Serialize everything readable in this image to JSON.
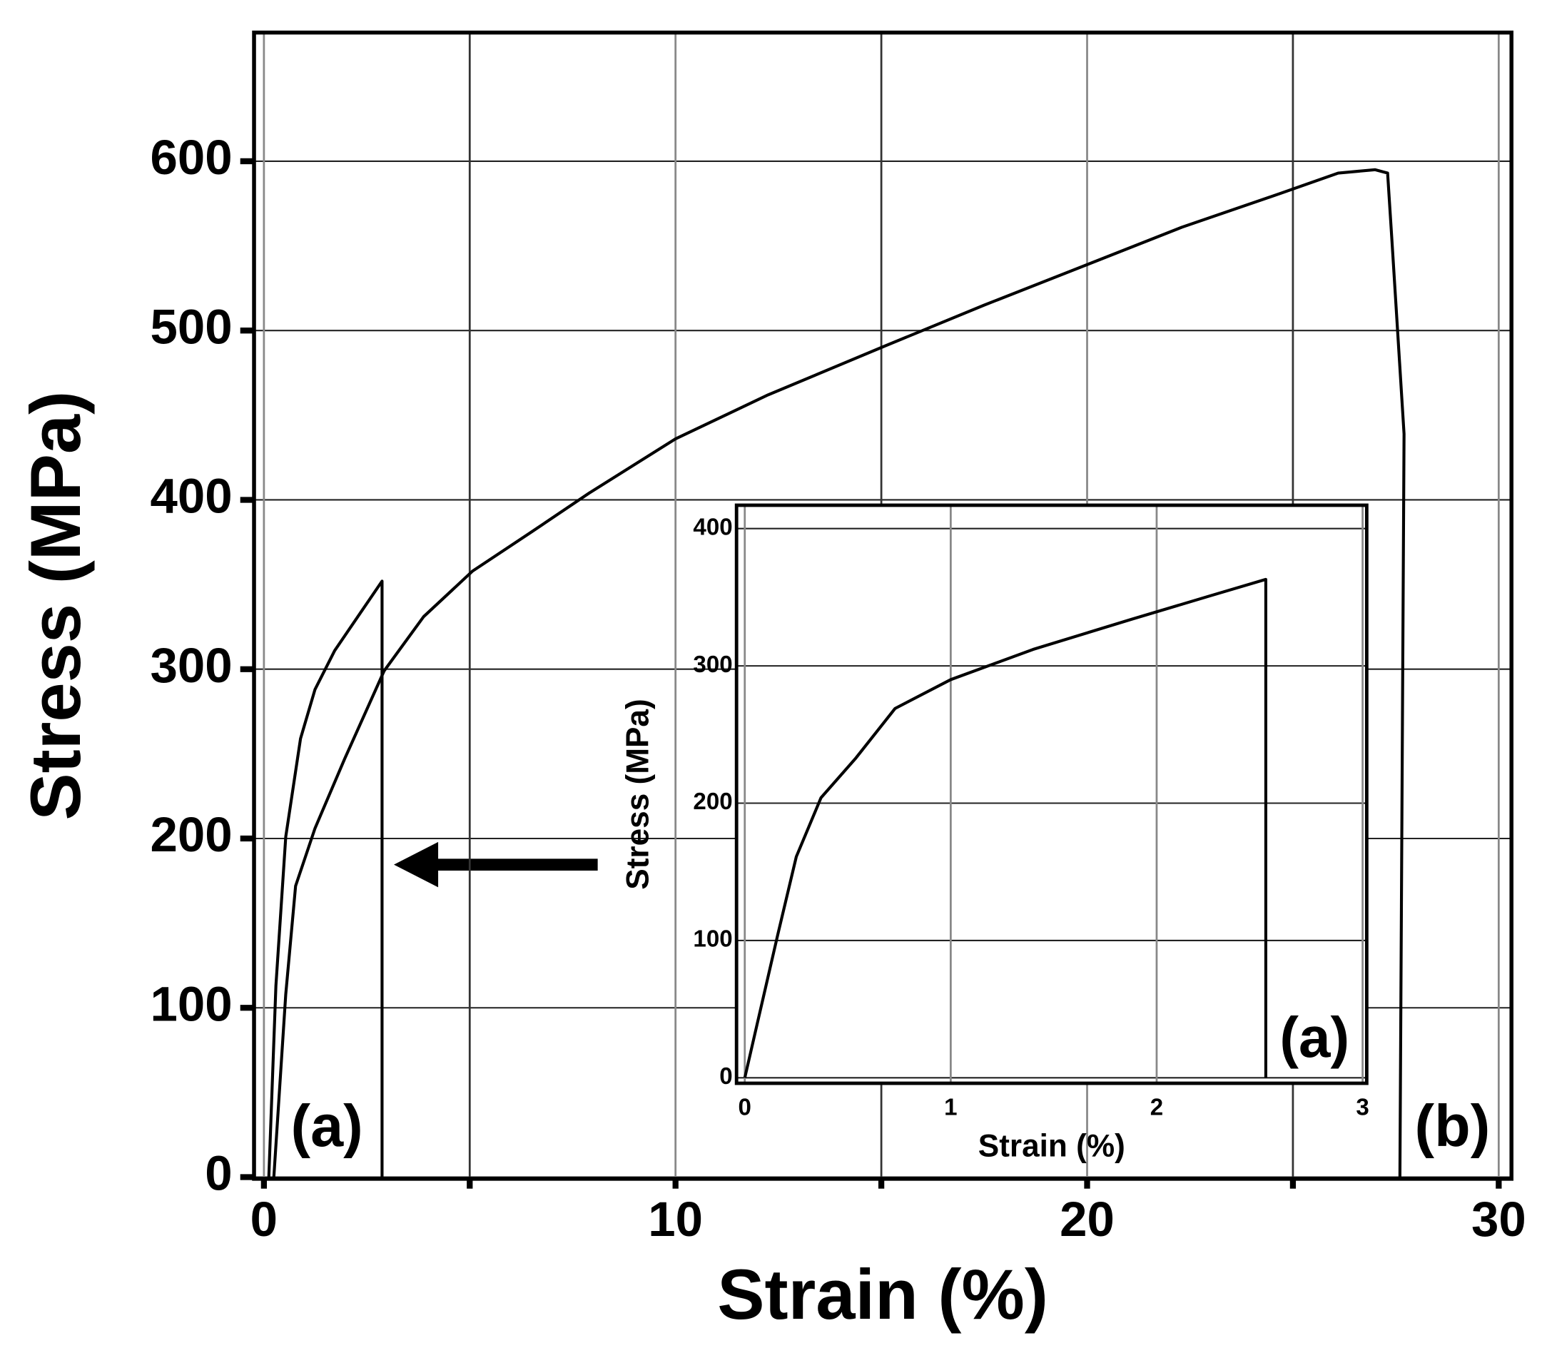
{
  "chart_data": [
    {
      "type": "line",
      "x_label": "Strain (%)",
      "y_label": "Stress (MPa)",
      "xlim": [
        -0.24,
        30.31
      ],
      "ylim": [
        -1,
        676
      ],
      "xticks": [
        0,
        10,
        20,
        30
      ],
      "xminor_ticks": [
        5,
        15,
        25
      ],
      "yticks": [
        0,
        100,
        200,
        300,
        400,
        500,
        600
      ],
      "grid": true,
      "annotations": [
        "(a)",
        "(b)"
      ],
      "series": [
        {
          "color": "#000000",
          "x": [
            0.12,
            0.29,
            0.53,
            0.89,
            1.24,
            1.72,
            2.87,
            2.87
          ],
          "values": [
            0,
            113,
            201,
            259,
            288,
            311,
            352,
            0
          ]
        },
        {
          "color": "#000000",
          "x": [
            0.24,
            0.53,
            0.77,
            1.24,
            1.96,
            2.92,
            3.88,
            5.07,
            6.5,
            7.9,
            10,
            12.25,
            15.1,
            17.5,
            19.9,
            22.3,
            24.7,
            26.1,
            27,
            27.3,
            27.4,
            27.7,
            27.6
          ],
          "values": [
            0,
            108,
            172,
            206,
            247,
            299,
            331,
            358,
            381,
            404,
            436,
            462,
            491,
            515,
            538,
            561,
            581,
            593,
            595,
            593,
            555,
            439,
            0
          ]
        }
      ]
    },
    {
      "type": "line",
      "x_label": "Strain (%)",
      "y_label": "Stress (MPa)",
      "xlim": [
        -0.04,
        3.02
      ],
      "ylim": [
        -4,
        417
      ],
      "xticks": [
        0,
        1,
        2,
        3
      ],
      "yticks": [
        0,
        100,
        200,
        300,
        400
      ],
      "grid": true,
      "annotations": [
        "(a)"
      ],
      "series": [
        {
          "color": "#000000",
          "x": [
            0,
            0.06,
            0.16,
            0.25,
            0.37,
            0.54,
            0.73,
            1,
            1.4,
            1.88,
            2.26,
            2.53,
            2.53
          ],
          "values": [
            0,
            39,
            104,
            161,
            204,
            233,
            269,
            290,
            312,
            334,
            351,
            363,
            0
          ]
        }
      ]
    }
  ]
}
